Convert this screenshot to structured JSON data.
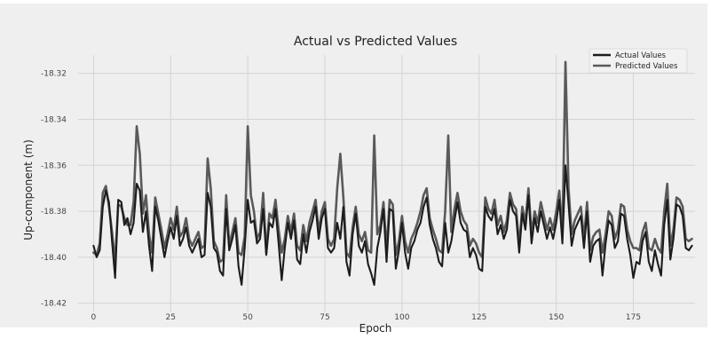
{
  "chart_data": {
    "type": "line",
    "title": "Actual vs Predicted Values",
    "xlabel": "Epoch",
    "ylabel": "Up-component (m)",
    "xlim": [
      -5,
      195
    ],
    "ylim": [
      -18.424,
      -18.312
    ],
    "xticks": [
      0,
      25,
      50,
      75,
      100,
      125,
      150,
      175
    ],
    "xtick_labels": [
      "0",
      "25",
      "50",
      "75",
      "100",
      "125",
      "150",
      "175"
    ],
    "yticks": [
      -18.32,
      -18.34,
      -18.36,
      -18.38,
      -18.4,
      -18.42
    ],
    "ytick_labels": [
      "-18.32",
      "-18.34",
      "-18.36",
      "-18.38",
      "-18.40",
      "-18.42"
    ],
    "grid": true,
    "legend_position": "top-right",
    "series": [
      {
        "name": "Actual Values",
        "color": "#1c1c1c",
        "values": [
          -18.395,
          -18.4,
          -18.397,
          -18.378,
          -18.371,
          -18.376,
          -18.393,
          -18.409,
          -18.375,
          -18.376,
          -18.386,
          -18.383,
          -18.39,
          -18.385,
          -18.368,
          -18.371,
          -18.389,
          -18.38,
          -18.395,
          -18.406,
          -18.378,
          -18.384,
          -18.392,
          -18.4,
          -18.393,
          -18.387,
          -18.392,
          -18.382,
          -18.395,
          -18.392,
          -18.387,
          -18.395,
          -18.398,
          -18.395,
          -18.392,
          -18.4,
          -18.399,
          -18.372,
          -18.378,
          -18.396,
          -18.398,
          -18.406,
          -18.408,
          -18.379,
          -18.397,
          -18.392,
          -18.386,
          -18.404,
          -18.412,
          -18.396,
          -18.375,
          -18.385,
          -18.384,
          -18.394,
          -18.392,
          -18.379,
          -18.399,
          -18.385,
          -18.387,
          -18.379,
          -18.394,
          -18.41,
          -18.396,
          -18.385,
          -18.392,
          -18.384,
          -18.401,
          -18.403,
          -18.39,
          -18.398,
          -18.389,
          -18.384,
          -18.378,
          -18.392,
          -18.383,
          -18.379,
          -18.396,
          -18.398,
          -18.396,
          -18.385,
          -18.392,
          -18.378,
          -18.402,
          -18.408,
          -18.39,
          -18.381,
          -18.395,
          -18.398,
          -18.393,
          -18.403,
          -18.407,
          -18.412,
          -18.396,
          -18.389,
          -18.379,
          -18.402,
          -18.379,
          -18.38,
          -18.405,
          -18.397,
          -18.385,
          -18.398,
          -18.405,
          -18.396,
          -18.393,
          -18.388,
          -18.385,
          -18.378,
          -18.374,
          -18.386,
          -18.392,
          -18.396,
          -18.402,
          -18.404,
          -18.385,
          -18.398,
          -18.393,
          -18.384,
          -18.376,
          -18.385,
          -18.388,
          -18.389,
          -18.4,
          -18.396,
          -18.399,
          -18.405,
          -18.406,
          -18.378,
          -18.382,
          -18.384,
          -18.379,
          -18.39,
          -18.386,
          -18.392,
          -18.388,
          -18.375,
          -18.38,
          -18.382,
          -18.398,
          -18.381,
          -18.388,
          -18.373,
          -18.394,
          -18.383,
          -18.389,
          -18.38,
          -18.386,
          -18.392,
          -18.387,
          -18.392,
          -18.385,
          -18.375,
          -18.394,
          -18.36,
          -18.377,
          -18.395,
          -18.388,
          -18.385,
          -18.382,
          -18.396,
          -18.38,
          -18.402,
          -18.395,
          -18.393,
          -18.392,
          -18.408,
          -18.394,
          -18.384,
          -18.386,
          -18.396,
          -18.393,
          -18.381,
          -18.382,
          -18.392,
          -18.399,
          -18.409,
          -18.402,
          -18.403,
          -18.393,
          -18.389,
          -18.402,
          -18.406,
          -18.397,
          -18.403,
          -18.408,
          -18.386,
          -18.375,
          -18.401,
          -18.392,
          -18.377,
          -18.378,
          -18.382,
          -18.396,
          -18.397,
          -18.395
        ]
      },
      {
        "name": "Predicted Values",
        "color": "#5a5a5a",
        "values": [
          -18.398,
          -18.399,
          -18.394,
          -18.372,
          -18.369,
          -18.378,
          -18.389,
          -18.402,
          -18.377,
          -18.378,
          -18.383,
          -18.386,
          -18.386,
          -18.376,
          -18.343,
          -18.355,
          -18.381,
          -18.373,
          -18.39,
          -18.398,
          -18.374,
          -18.381,
          -18.388,
          -18.396,
          -18.39,
          -18.383,
          -18.388,
          -18.378,
          -18.391,
          -18.389,
          -18.383,
          -18.392,
          -18.395,
          -18.392,
          -18.389,
          -18.396,
          -18.395,
          -18.357,
          -18.37,
          -18.393,
          -18.396,
          -18.402,
          -18.401,
          -18.373,
          -18.395,
          -18.389,
          -18.383,
          -18.398,
          -18.399,
          -18.391,
          -18.343,
          -18.373,
          -18.38,
          -18.392,
          -18.389,
          -18.372,
          -18.398,
          -18.381,
          -18.383,
          -18.375,
          -18.388,
          -18.398,
          -18.392,
          -18.382,
          -18.389,
          -18.381,
          -18.395,
          -18.397,
          -18.386,
          -18.393,
          -18.385,
          -18.38,
          -18.375,
          -18.389,
          -18.38,
          -18.376,
          -18.392,
          -18.395,
          -18.392,
          -18.37,
          -18.355,
          -18.374,
          -18.398,
          -18.4,
          -18.387,
          -18.378,
          -18.39,
          -18.393,
          -18.389,
          -18.397,
          -18.398,
          -18.347,
          -18.39,
          -18.386,
          -18.376,
          -18.397,
          -18.375,
          -18.377,
          -18.399,
          -18.393,
          -18.382,
          -18.393,
          -18.398,
          -18.392,
          -18.389,
          -18.385,
          -18.38,
          -18.373,
          -18.37,
          -18.383,
          -18.388,
          -18.392,
          -18.397,
          -18.398,
          -18.38,
          -18.347,
          -18.389,
          -18.379,
          -18.372,
          -18.38,
          -18.384,
          -18.386,
          -18.395,
          -18.392,
          -18.394,
          -18.398,
          -18.4,
          -18.374,
          -18.379,
          -18.381,
          -18.375,
          -18.386,
          -18.382,
          -18.389,
          -18.384,
          -18.372,
          -18.377,
          -18.379,
          -18.395,
          -18.378,
          -18.385,
          -18.37,
          -18.39,
          -18.38,
          -18.385,
          -18.376,
          -18.382,
          -18.388,
          -18.383,
          -18.388,
          -18.38,
          -18.371,
          -18.39,
          -18.315,
          -18.37,
          -18.39,
          -18.384,
          -18.381,
          -18.378,
          -18.392,
          -18.376,
          -18.397,
          -18.391,
          -18.389,
          -18.388,
          -18.398,
          -18.39,
          -18.38,
          -18.382,
          -18.392,
          -18.388,
          -18.377,
          -18.378,
          -18.388,
          -18.393,
          -18.396,
          -18.396,
          -18.397,
          -18.389,
          -18.385,
          -18.396,
          -18.397,
          -18.392,
          -18.396,
          -18.398,
          -18.38,
          -18.368,
          -18.395,
          -18.388,
          -18.374,
          -18.375,
          -18.378,
          -18.392,
          -18.393,
          -18.392
        ]
      }
    ]
  }
}
